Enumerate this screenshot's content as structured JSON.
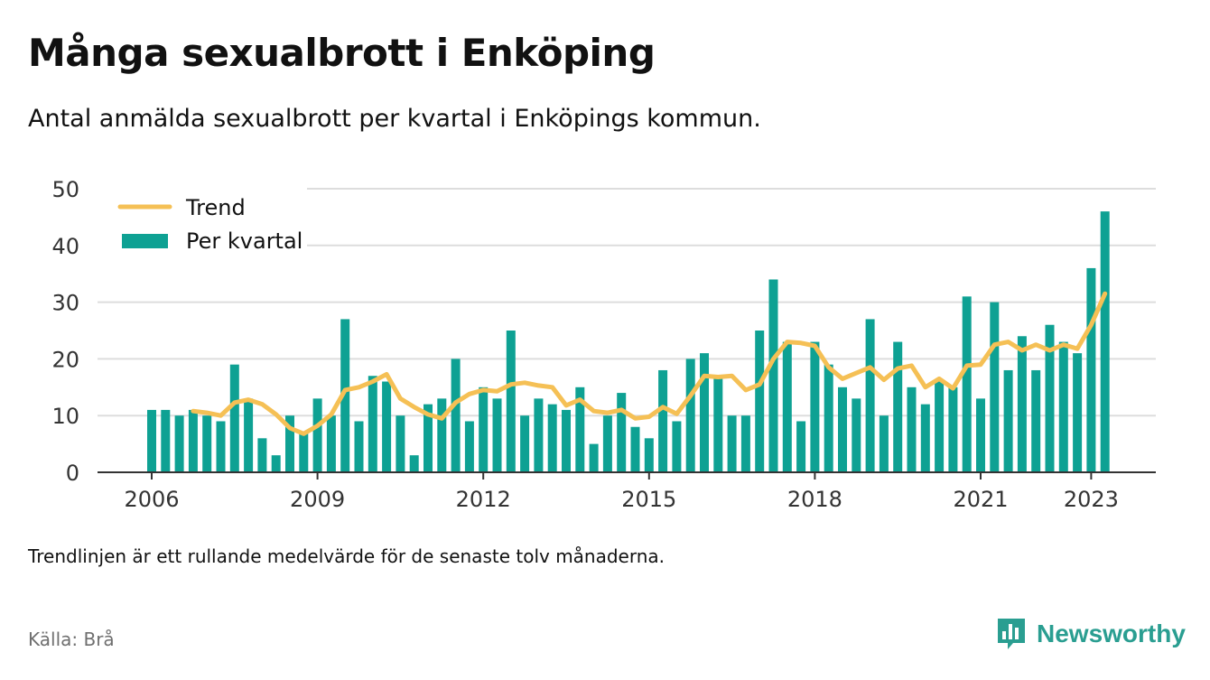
{
  "title": "Många sexualbrott i Enköping",
  "subtitle": "Antal anmälda sexualbrott per kvartal i Enköpings kommun.",
  "note": "Trendlinjen är ett rullande medelvärde för de senaste tolv månaderna.",
  "source": "Källa: Brå",
  "brand": {
    "name": "Newsworthy",
    "icon": "bar-chart-speech-bubble-icon"
  },
  "colors": {
    "bar": "#0ea193",
    "trend": "#f5c055",
    "grid": "#dddddd",
    "axis": "#333333",
    "brand": "#2a9e91"
  },
  "chart_data": {
    "type": "bar",
    "x_start": "2006",
    "x_ticks": [
      "2006",
      "2009",
      "2012",
      "2015",
      "2018",
      "2021",
      "2023"
    ],
    "ylim": [
      0,
      50
    ],
    "y_ticks": [
      "0",
      "10",
      "20",
      "30",
      "40",
      "50"
    ],
    "grid": true,
    "legend_position": "top-left",
    "legend": [
      "Trend",
      "Per kvartal"
    ],
    "series": [
      {
        "name": "Per kvartal",
        "type": "bar",
        "values": [
          11,
          11,
          10,
          11,
          10,
          9,
          19,
          13,
          6,
          3,
          10,
          7,
          13,
          10,
          27,
          9,
          17,
          16,
          10,
          3,
          12,
          13,
          20,
          9,
          15,
          13,
          25,
          10,
          13,
          12,
          11,
          15,
          5,
          10,
          14,
          8,
          6,
          18,
          9,
          20,
          21,
          17,
          10,
          10,
          25,
          34,
          23,
          9,
          23,
          19,
          15,
          13,
          27,
          10,
          23,
          15,
          12,
          16,
          15,
          31,
          13,
          30,
          18,
          24,
          18,
          26,
          23,
          21,
          36,
          46
        ]
      },
      {
        "name": "Trend",
        "type": "line",
        "start_index": 3,
        "values": [
          10.8,
          10.5,
          10.0,
          12.3,
          12.8,
          12.0,
          10.2,
          7.8,
          6.8,
          8.2,
          10.2,
          14.5,
          15.0,
          16.0,
          17.3,
          13.0,
          11.5,
          10.2,
          9.5,
          12.3,
          13.8,
          14.5,
          14.3,
          15.5,
          15.8,
          15.3,
          15.0,
          11.8,
          12.8,
          10.8,
          10.5,
          11.0,
          9.5,
          9.8,
          11.5,
          10.3,
          13.5,
          17.0,
          16.8,
          17.0,
          14.5,
          15.5,
          20.0,
          23.0,
          22.8,
          22.3,
          18.5,
          16.5,
          17.5,
          18.5,
          16.3,
          18.3,
          18.8,
          15.0,
          16.5,
          14.8,
          18.8,
          19.0,
          22.5,
          23.0,
          21.5,
          22.5,
          21.5,
          22.5,
          21.8,
          26.0,
          31.5
        ]
      }
    ]
  }
}
